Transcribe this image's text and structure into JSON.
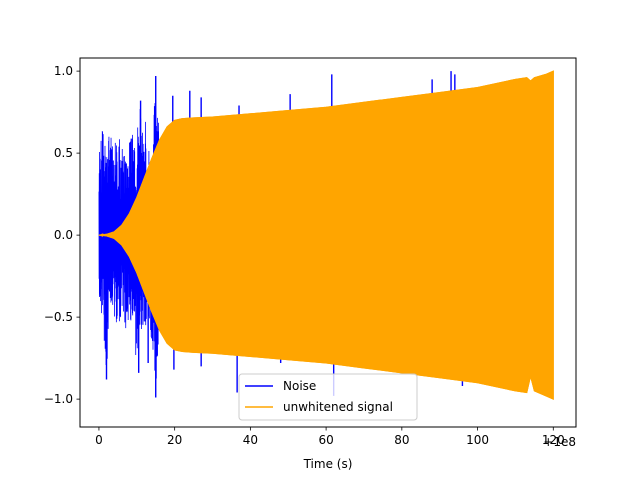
{
  "chart_data": {
    "type": "line",
    "title": "",
    "xlabel": "Time (s)",
    "ylabel": "",
    "x_offset_label": "+1e8",
    "xlim": [
      -5,
      126
    ],
    "ylim": [
      -1.17,
      1.08
    ],
    "x_ticks": [
      0,
      20,
      40,
      60,
      80,
      100,
      120
    ],
    "x_tick_labels": [
      "0",
      "20",
      "40",
      "60",
      "80",
      "100",
      "120"
    ],
    "y_ticks": [
      -1.0,
      -0.5,
      0.0,
      0.5,
      1.0
    ],
    "y_tick_labels": [
      "−1.0",
      "−0.5",
      "0.0",
      "0.5",
      "1.0"
    ],
    "legend_position": "lower-center",
    "grid": false,
    "series": [
      {
        "name": "Noise",
        "color": "#0000ff",
        "style": "oscillating-envelope",
        "x": [
          0,
          1,
          2,
          3,
          4,
          5,
          6,
          7,
          8,
          9,
          10,
          11,
          12,
          13,
          14,
          15,
          16,
          17,
          18,
          19,
          20
        ],
        "upper_envelope": [
          0.62,
          0.66,
          0.63,
          0.64,
          0.6,
          0.57,
          0.62,
          0.5,
          0.6,
          0.62,
          0.6,
          0.84,
          0.74,
          0.66,
          0.5,
          0.96,
          0.62,
          0.55,
          0.52,
          0.6,
          0.62
        ],
        "lower_envelope": [
          -0.55,
          -0.58,
          -0.88,
          -0.5,
          -0.54,
          -0.55,
          -0.5,
          -0.6,
          -0.52,
          -0.58,
          -0.85,
          -0.56,
          -0.62,
          -0.5,
          -0.75,
          -0.99,
          -0.62,
          -0.55,
          -0.7,
          -0.6,
          -0.7
        ],
        "spikes": [
          {
            "x": 15,
            "y": 0.97
          },
          {
            "x": 15,
            "y": -0.99
          },
          {
            "x": 2,
            "y": -0.88
          },
          {
            "x": 10.5,
            "y": -0.84
          },
          {
            "x": 11,
            "y": 0.82
          },
          {
            "x": 13,
            "y": -0.78
          },
          {
            "x": 19.5,
            "y": 0.85
          },
          {
            "x": 19.8,
            "y": -0.82
          },
          {
            "x": 24,
            "y": 0.88
          },
          {
            "x": 27,
            "y": 0.84
          },
          {
            "x": 27,
            "y": -0.8
          },
          {
            "x": 36.5,
            "y": -0.96
          },
          {
            "x": 37,
            "y": 0.79
          },
          {
            "x": 50.5,
            "y": 0.86
          },
          {
            "x": 48,
            "y": -0.78
          },
          {
            "x": 61.5,
            "y": 0.98
          },
          {
            "x": 62,
            "y": -0.98
          },
          {
            "x": 60.5,
            "y": 0.78
          },
          {
            "x": 88,
            "y": 0.95
          },
          {
            "x": 90,
            "y": -0.85
          },
          {
            "x": 93,
            "y": 1.0
          },
          {
            "x": 94,
            "y": 0.98
          },
          {
            "x": 96,
            "y": -0.92
          }
        ]
      },
      {
        "name": "unwhitened signal",
        "color": "#ffa500",
        "style": "chirp-envelope",
        "x": [
          0,
          2,
          4,
          6,
          8,
          10,
          12,
          14,
          16,
          18,
          20,
          22,
          25,
          30,
          40,
          50,
          60,
          70,
          80,
          90,
          100,
          110,
          113,
          114,
          115,
          118,
          120
        ],
        "upper_envelope": [
          0.0,
          0.005,
          0.02,
          0.06,
          0.13,
          0.23,
          0.35,
          0.47,
          0.58,
          0.66,
          0.7,
          0.71,
          0.715,
          0.72,
          0.74,
          0.76,
          0.78,
          0.81,
          0.84,
          0.87,
          0.9,
          0.95,
          0.96,
          0.94,
          0.96,
          0.98,
          1.0
        ],
        "lower_envelope": [
          0.0,
          -0.005,
          -0.02,
          -0.06,
          -0.13,
          -0.23,
          -0.35,
          -0.47,
          -0.58,
          -0.66,
          -0.7,
          -0.71,
          -0.715,
          -0.72,
          -0.74,
          -0.76,
          -0.78,
          -0.81,
          -0.84,
          -0.87,
          -0.9,
          -0.95,
          -0.96,
          -0.86,
          -0.95,
          -0.98,
          -1.0
        ]
      }
    ]
  }
}
